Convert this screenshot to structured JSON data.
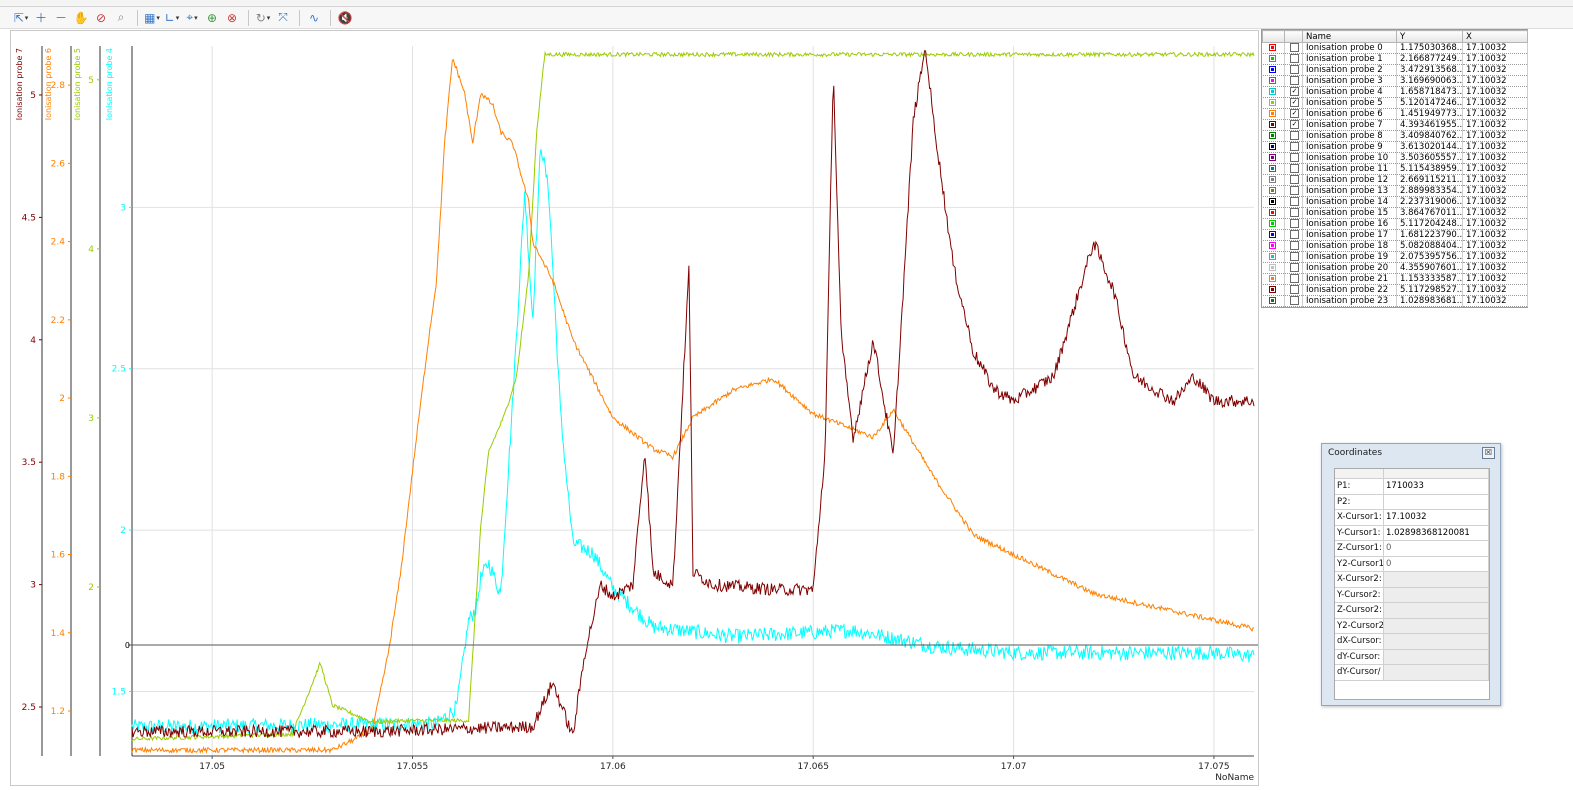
{
  "toolbar": {
    "icons": [
      "select-tool-icon",
      "zoom-in-icon",
      "zoom-out-icon",
      "pan-icon",
      "zoom-reset-icon",
      "zoom-box-icon",
      "chart-layout-icon",
      "axis-icon",
      "cursor-icon",
      "add-marker-icon",
      "remove-marker-icon",
      "trace-icon",
      "measure-icon",
      "curve-fit-icon",
      "mute-icon"
    ]
  },
  "chart_data": {
    "type": "line",
    "x_axis": {
      "label": "NoName",
      "range": [
        17.048,
        17.076
      ],
      "ticks": [
        "17.05",
        "17.055",
        "17.06",
        "17.065",
        "17.07",
        "17.075"
      ]
    },
    "y_axes": [
      {
        "name": "Ionisation probe 7",
        "color": "#800000",
        "range": [
          2.3,
          5.2
        ],
        "ticks": [
          "2.5",
          "3",
          "3.5",
          "4",
          "4.5",
          "5"
        ]
      },
      {
        "name": "Ionisation probe 6",
        "color": "#ff8000",
        "range": [
          1.085,
          2.9
        ],
        "ticks": [
          "1.2",
          "1.4",
          "1.6",
          "1.8",
          "2",
          "2.2",
          "2.4",
          "2.6",
          "2.8"
        ]
      },
      {
        "name": "Ionisation probe 5",
        "color": "#99cc00",
        "range": [
          1.0,
          5.2
        ],
        "ticks": [
          "2",
          "3",
          "4",
          "5"
        ]
      },
      {
        "name": "Ionisation probe 4",
        "color": "#00ffff",
        "range": [
          1.3,
          3.5
        ],
        "ticks": [
          "1.5",
          "2",
          "2.5",
          "3"
        ]
      }
    ],
    "cursor_line_y_label": "0",
    "grid": true,
    "series": [
      {
        "name": "Ionisation probe 4",
        "color": "#00ffff",
        "x": [
          17.048,
          17.0556,
          17.0561,
          17.0564,
          17.0566,
          17.0567,
          17.0569,
          17.0572,
          17.0575,
          17.0578,
          17.058,
          17.0582,
          17.0584,
          17.0587,
          17.059,
          17.0595,
          17.06,
          17.061,
          17.063,
          17.066,
          17.068,
          17.07,
          17.075,
          17.076
        ],
        "y": [
          1.39,
          1.4,
          1.45,
          1.72,
          1.76,
          1.85,
          1.9,
          1.8,
          2.4,
          3.05,
          2.65,
          3.2,
          3.05,
          2.35,
          1.96,
          1.93,
          1.82,
          1.7,
          1.67,
          1.69,
          1.64,
          1.62,
          1.62,
          1.61
        ]
      },
      {
        "name": "Ionisation probe 5",
        "color": "#99cc00",
        "x": [
          17.048,
          17.052,
          17.0527,
          17.053,
          17.0535,
          17.054,
          17.055,
          17.0564,
          17.0567,
          17.0569,
          17.0573,
          17.0576,
          17.0579,
          17.0581,
          17.0583,
          17.0585,
          17.076
        ],
        "y": [
          1.1,
          1.13,
          1.55,
          1.3,
          1.25,
          1.2,
          1.21,
          1.21,
          2.35,
          2.8,
          3.02,
          3.25,
          3.85,
          4.7,
          5.15,
          5.15,
          5.15
        ]
      },
      {
        "name": "Ionisation probe 6",
        "color": "#ff8000",
        "x": [
          17.048,
          17.053,
          17.054,
          17.0544,
          17.0547,
          17.0551,
          17.0554,
          17.0556,
          17.0558,
          17.056,
          17.0563,
          17.0565,
          17.0567,
          17.057,
          17.0572,
          17.0575,
          17.0579,
          17.058,
          17.0585,
          17.059,
          17.06,
          17.061,
          17.0615,
          17.062,
          17.063,
          17.064,
          17.065,
          17.0665,
          17.067,
          17.068,
          17.069,
          17.07,
          17.072,
          17.076
        ],
        "y": [
          1.1,
          1.1,
          1.15,
          1.35,
          1.55,
          1.9,
          2.15,
          2.3,
          2.65,
          2.87,
          2.78,
          2.65,
          2.78,
          2.75,
          2.68,
          2.65,
          2.5,
          2.4,
          2.3,
          2.15,
          1.95,
          1.87,
          1.85,
          1.95,
          2.02,
          2.05,
          1.96,
          1.9,
          1.97,
          1.8,
          1.65,
          1.6,
          1.5,
          1.41
        ]
      },
      {
        "name": "Ionisation probe 7",
        "color": "#800000",
        "x": [
          17.048,
          17.054,
          17.058,
          17.0585,
          17.059,
          17.0593,
          17.0597,
          17.06,
          17.0605,
          17.0608,
          17.061,
          17.0615,
          17.0619,
          17.062,
          17.0625,
          17.064,
          17.065,
          17.0653,
          17.0655,
          17.0657,
          17.066,
          17.0665,
          17.067,
          17.0675,
          17.0678,
          17.068,
          17.0685,
          17.069,
          17.0695,
          17.07,
          17.071,
          17.072,
          17.0725,
          17.073,
          17.074,
          17.0745,
          17.075,
          17.076
        ],
        "y": [
          2.4,
          2.4,
          2.42,
          2.6,
          2.38,
          2.72,
          3.0,
          2.95,
          3.0,
          3.55,
          3.05,
          3.0,
          4.3,
          3.05,
          3.0,
          2.98,
          2.98,
          3.55,
          5.1,
          4.0,
          3.6,
          4.0,
          3.52,
          4.9,
          5.2,
          4.9,
          4.3,
          3.95,
          3.8,
          3.75,
          3.85,
          4.4,
          4.2,
          3.85,
          3.75,
          3.85,
          3.75,
          3.75
        ]
      }
    ]
  },
  "legend": {
    "headers": [
      "Name",
      "Y",
      "X"
    ],
    "rows": [
      {
        "name": "Ionisation probe 0",
        "y": "1.175030368...",
        "x": "17.10032",
        "color": "#ff0000",
        "checked": ""
      },
      {
        "name": "Ionisation probe 1",
        "y": "2.166877249...",
        "x": "17.10032",
        "color": "#00cc00",
        "checked": ""
      },
      {
        "name": "Ionisation probe 2",
        "y": "3.472913568...",
        "x": "17.10032",
        "color": "#0000ff",
        "checked": ""
      },
      {
        "name": "Ionisation probe 3",
        "y": "3.169690063...",
        "x": "17.10032",
        "color": "#ff00ff",
        "checked": ""
      },
      {
        "name": "Ionisation probe 4",
        "y": "1.658718473...",
        "x": "17.10032",
        "color": "#00cccc",
        "checked": "✓"
      },
      {
        "name": "Ionisation probe 5",
        "y": "5.120147246...",
        "x": "17.10032",
        "color": "#99cc00",
        "checked": "✓"
      },
      {
        "name": "Ionisation probe 6",
        "y": "1.451949773...",
        "x": "17.10032",
        "color": "#ff8000",
        "checked": "✓"
      },
      {
        "name": "Ionisation probe 7",
        "y": "4.393461955...",
        "x": "17.10032",
        "color": "#800000",
        "checked": "✓"
      },
      {
        "name": "Ionisation probe 8",
        "y": "3.409840762...",
        "x": "17.10032",
        "color": "#008000",
        "checked": ""
      },
      {
        "name": "Ionisation probe 9",
        "y": "3.613020144...",
        "x": "17.10032",
        "color": "#000080",
        "checked": ""
      },
      {
        "name": "Ionisation probe 10",
        "y": "3.503605557...",
        "x": "17.10032",
        "color": "#800080",
        "checked": ""
      },
      {
        "name": "Ionisation probe 11",
        "y": "5.115438959...",
        "x": "17.10032",
        "color": "#008080",
        "checked": ""
      },
      {
        "name": "Ionisation probe 12",
        "y": "2.669115211...",
        "x": "17.10032",
        "color": "#808080",
        "checked": ""
      },
      {
        "name": "Ionisation probe 13",
        "y": "2.889983354...",
        "x": "17.10032",
        "color": "#808000",
        "checked": ""
      },
      {
        "name": "Ionisation probe 14",
        "y": "2.237319006...",
        "x": "17.10032",
        "color": "#000000",
        "checked": ""
      },
      {
        "name": "Ionisation probe 15",
        "y": "3.864767011...",
        "x": "17.10032",
        "color": "#ff0000",
        "checked": ""
      },
      {
        "name": "Ionisation probe 16",
        "y": "5.117204248...",
        "x": "17.10032",
        "color": "#00cc00",
        "checked": ""
      },
      {
        "name": "Ionisation probe 17",
        "y": "1.681223790...",
        "x": "17.10032",
        "color": "#0000ff",
        "checked": ""
      },
      {
        "name": "Ionisation probe 18",
        "y": "5.082088404...",
        "x": "17.10032",
        "color": "#ff00ff",
        "checked": ""
      },
      {
        "name": "Ionisation probe 19",
        "y": "2.075395756...",
        "x": "17.10032",
        "color": "#00cccc",
        "checked": ""
      },
      {
        "name": "Ionisation probe 20",
        "y": "4.355907601...",
        "x": "17.10032",
        "color": "#c0c0c0",
        "checked": ""
      },
      {
        "name": "Ionisation probe 21",
        "y": "1.153333587...",
        "x": "17.10032",
        "color": "#ff8000",
        "checked": ""
      },
      {
        "name": "Ionisation probe 22",
        "y": "5.117298527...",
        "x": "17.10032",
        "color": "#800000",
        "checked": ""
      },
      {
        "name": "Ionisation probe 23",
        "y": "1.028983681...",
        "x": "17.10032",
        "color": "#008000",
        "checked": ""
      }
    ]
  },
  "coordinates": {
    "title": "Coordinates",
    "close_glyph": "☒",
    "rows": [
      {
        "key": "P1:",
        "value": "1710033"
      },
      {
        "key": "P2:",
        "value": ""
      },
      {
        "key": "X-Cursor1:",
        "value": "17.10032"
      },
      {
        "key": "Y-Cursor1:",
        "value": "1.02898368120081"
      },
      {
        "key": "Z-Cursor1:",
        "value": "0"
      },
      {
        "key": "Y2-Cursor1",
        "value": "0"
      },
      {
        "key": "X-Cursor2:",
        "value": ""
      },
      {
        "key": "Y-Cursor2:",
        "value": ""
      },
      {
        "key": "Z-Cursor2:",
        "value": ""
      },
      {
        "key": "Y2-Cursor2",
        "value": ""
      },
      {
        "key": "dX-Cursor:",
        "value": ""
      },
      {
        "key": "dY-Cursor:",
        "value": ""
      },
      {
        "key": "dY-Cursor/",
        "value": ""
      }
    ]
  }
}
